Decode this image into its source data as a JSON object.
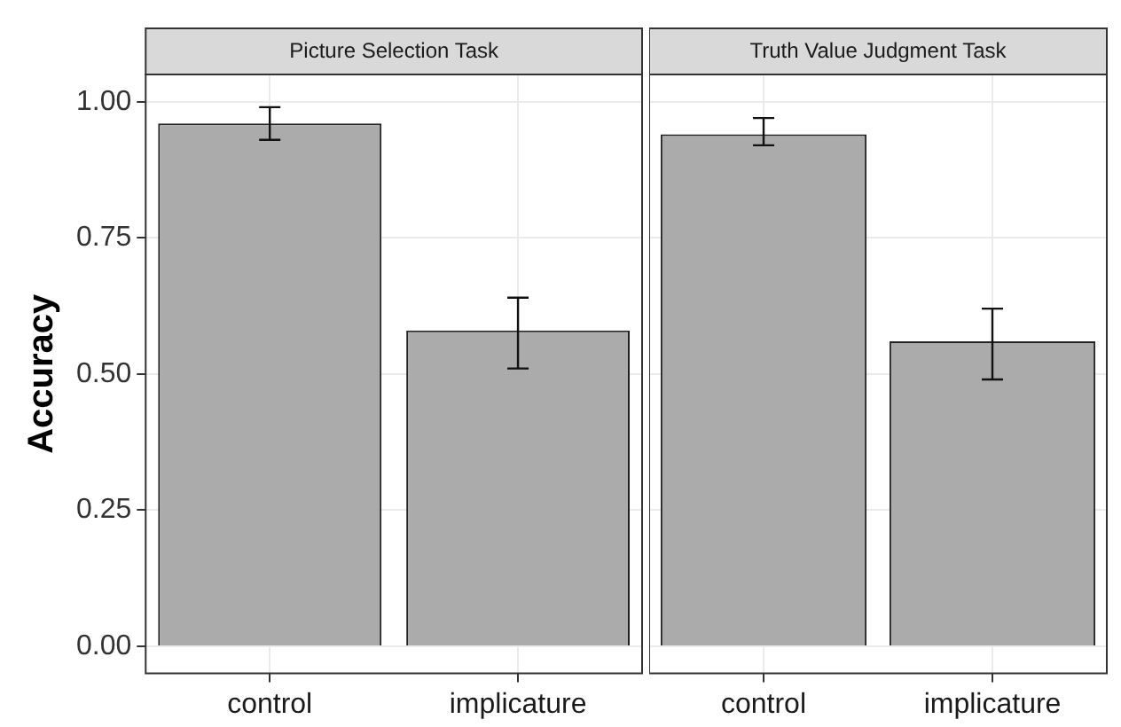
{
  "chart_data": [
    {
      "type": "bar",
      "title": "Picture Selection Task",
      "ylabel": "Accuracy",
      "categories": [
        "control",
        "implicature"
      ],
      "values": [
        0.96,
        0.58
      ],
      "errors": [
        [
          0.93,
          0.99
        ],
        [
          0.51,
          0.64
        ]
      ],
      "color": "#ababab",
      "ylim": [
        -0.05,
        1.05
      ],
      "yticks": [
        {
          "value": 0,
          "label": "0.00"
        },
        {
          "value": 0.25,
          "label": "0.25"
        },
        {
          "value": 0.5,
          "label": "0.50"
        },
        {
          "value": 0.75,
          "label": "0.75"
        },
        {
          "value": 1,
          "label": "1.00"
        }
      ],
      "grid": true
    },
    {
      "type": "bar",
      "title": "Truth Value Judgment Task",
      "categories": [
        "control",
        "implicature"
      ],
      "values": [
        0.94,
        0.56
      ],
      "errors": [
        [
          0.92,
          0.97
        ],
        [
          0.49,
          0.62
        ]
      ],
      "color": "#ababab",
      "ylim": [
        -0.05,
        1.05
      ],
      "yticks": [
        0,
        0.25,
        0.5,
        0.75,
        1
      ],
      "grid": true,
      "tick_labels": "x"
    }
  ]
}
